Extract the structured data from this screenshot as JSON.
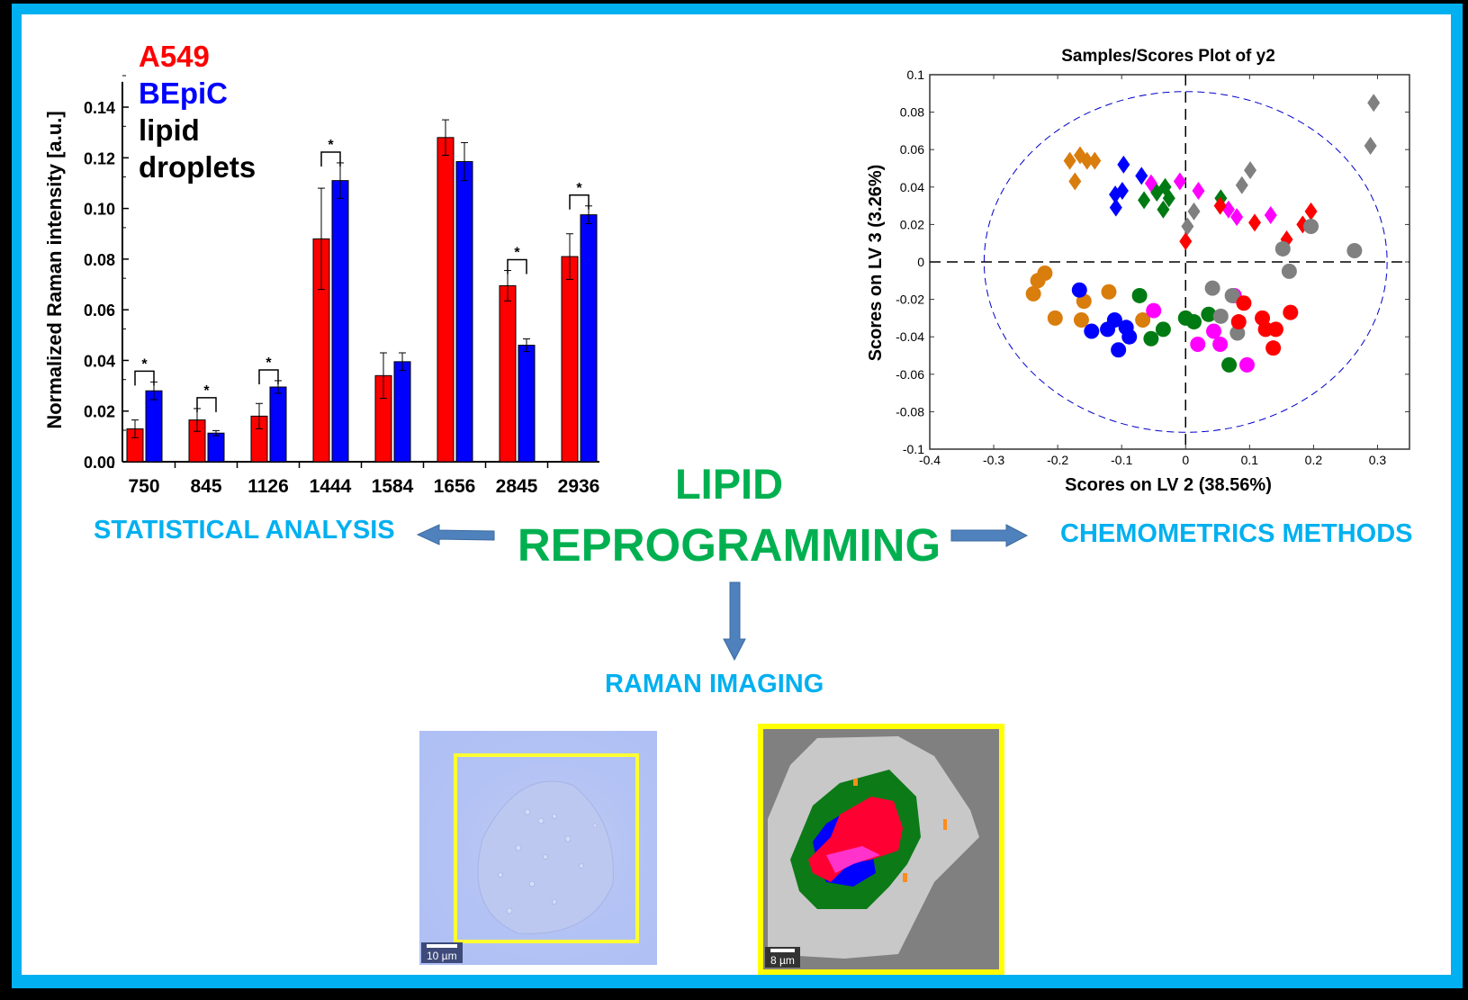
{
  "center": {
    "title_line1": "LIPID",
    "title_line2": "REPROGRAMMING"
  },
  "labels": {
    "statistical": "STATISTICAL ANALYSIS",
    "chemometrics": "CHEMOMETRICS METHODS",
    "raman_imaging": "RAMAN IMAGING"
  },
  "legend": {
    "a549": "A549",
    "bepic": "BEpiC",
    "line3": "lipid",
    "line4": "droplets"
  },
  "colors": {
    "frame": "#00b0f0",
    "headline": "#00b050",
    "method_text": "#00b0f0",
    "arrow": "#4f81bd",
    "a549": "#ff0000",
    "bepic": "#0000ff"
  },
  "images": {
    "brightfield_scale": "10 µm",
    "raman_map_scale": "8 µm"
  },
  "chart_data": [
    {
      "type": "bar",
      "ylabel": "Normalized Raman intensity [a.u.]",
      "xlabel": "",
      "ylim": [
        0,
        0.15
      ],
      "yticks": [
        "0.00",
        "0.02",
        "0.04",
        "0.06",
        "0.08",
        "0.10",
        "0.12",
        "0.14"
      ],
      "categories": [
        "750",
        "845",
        "1126",
        "1444",
        "1584",
        "1656",
        "2845",
        "2936"
      ],
      "series": [
        {
          "name": "A549",
          "color": "#ff0000",
          "values": [
            0.013,
            0.0165,
            0.018,
            0.088,
            0.034,
            0.128,
            0.0695,
            0.081
          ],
          "errors": [
            0.0035,
            0.0045,
            0.005,
            0.02,
            0.009,
            0.007,
            0.006,
            0.009
          ]
        },
        {
          "name": "BEpiC",
          "color": "#0000ff",
          "values": [
            0.028,
            0.0113,
            0.0295,
            0.111,
            0.0395,
            0.1185,
            0.046,
            0.0975
          ],
          "errors": [
            0.0035,
            0.001,
            0.0025,
            0.007,
            0.0035,
            0.0075,
            0.0025,
            0.0035
          ]
        }
      ],
      "significance": [
        "750",
        "845",
        "1126",
        "1444",
        "2845",
        "2936"
      ],
      "significance_mark": "*"
    },
    {
      "type": "scatter",
      "title": "Samples/Scores Plot of y2",
      "xlabel": "Scores on LV 2 (38.56%)",
      "ylabel": "Scores on LV 3 (3.26%)",
      "xlim": [
        -0.4,
        0.35
      ],
      "ylim": [
        -0.1,
        0.1
      ],
      "xticks": [
        "-0.4",
        "-0.3",
        "-0.2",
        "-0.1",
        "0",
        "0.1",
        "0.2",
        "0.3"
      ],
      "yticks": [
        "-0.1",
        "-0.08",
        "-0.06",
        "-0.04",
        "-0.02",
        "0",
        "0.02",
        "0.04",
        "0.06",
        "0.08",
        "0.1"
      ],
      "confidence_ellipse": {
        "cx": 0,
        "cy": 0,
        "rx": 0.315,
        "ry": 0.091,
        "color": "#0000cc"
      },
      "series": [
        {
          "color": "#d97d0d",
          "marker": "diamond",
          "points": [
            [
              -0.181,
              0.054
            ],
            [
              -0.165,
              0.057
            ],
            [
              -0.154,
              0.054
            ],
            [
              -0.142,
              0.054
            ],
            [
              -0.173,
              0.043
            ]
          ]
        },
        {
          "color": "#0000ff",
          "marker": "diamond",
          "points": [
            [
              -0.097,
              0.052
            ],
            [
              -0.069,
              0.046
            ],
            [
              -0.11,
              0.036
            ],
            [
              -0.099,
              0.038
            ],
            [
              -0.109,
              0.029
            ]
          ]
        },
        {
          "color": "#ff00ff",
          "marker": "diamond",
          "points": [
            [
              -0.054,
              0.042
            ],
            [
              -0.009,
              0.043
            ],
            [
              0.02,
              0.038
            ],
            [
              0.067,
              0.028
            ],
            [
              0.08,
              0.024
            ],
            [
              0.133,
              0.025
            ]
          ]
        },
        {
          "color": "#007a12",
          "marker": "diamond",
          "points": [
            [
              -0.065,
              0.033
            ],
            [
              -0.045,
              0.037
            ],
            [
              -0.032,
              0.04
            ],
            [
              -0.026,
              0.034
            ],
            [
              -0.035,
              0.028
            ],
            [
              0.055,
              0.034
            ]
          ]
        },
        {
          "color": "#808080",
          "marker": "diamond",
          "points": [
            [
              0.294,
              0.085
            ],
            [
              0.289,
              0.062
            ],
            [
              0.101,
              0.049
            ],
            [
              0.088,
              0.041
            ],
            [
              0.013,
              0.027
            ],
            [
              0.003,
              0.019
            ]
          ]
        },
        {
          "color": "#ff0000",
          "marker": "diamond",
          "points": [
            [
              0.0,
              0.011
            ],
            [
              0.054,
              0.03
            ],
            [
              0.108,
              0.021
            ],
            [
              0.158,
              0.012
            ],
            [
              0.183,
              0.02
            ],
            [
              0.196,
              0.027
            ]
          ]
        },
        {
          "color": "#d97d0d",
          "marker": "circle",
          "points": [
            [
              -0.22,
              -0.006
            ],
            [
              -0.231,
              -0.01
            ],
            [
              -0.238,
              -0.017
            ],
            [
              -0.204,
              -0.03
            ],
            [
              -0.159,
              -0.021
            ],
            [
              -0.163,
              -0.031
            ],
            [
              -0.12,
              -0.016
            ],
            [
              -0.067,
              -0.031
            ]
          ]
        },
        {
          "color": "#0000ff",
          "marker": "circle",
          "points": [
            [
              -0.166,
              -0.015
            ],
            [
              -0.111,
              -0.031
            ],
            [
              -0.147,
              -0.037
            ],
            [
              -0.122,
              -0.036
            ],
            [
              -0.093,
              -0.035
            ],
            [
              -0.088,
              -0.04
            ],
            [
              -0.105,
              -0.047
            ]
          ]
        },
        {
          "color": "#007a12",
          "marker": "circle",
          "points": [
            [
              -0.072,
              -0.018
            ],
            [
              -0.035,
              -0.036
            ],
            [
              -0.054,
              -0.041
            ],
            [
              0.0,
              -0.03
            ],
            [
              0.013,
              -0.032
            ],
            [
              0.036,
              -0.028
            ],
            [
              0.068,
              -0.055
            ]
          ]
        },
        {
          "color": "#ff00ff",
          "marker": "circle",
          "points": [
            [
              -0.05,
              -0.026
            ],
            [
              0.019,
              -0.044
            ],
            [
              0.044,
              -0.037
            ],
            [
              0.054,
              -0.044
            ],
            [
              0.096,
              -0.055
            ],
            [
              0.076,
              -0.018
            ]
          ]
        },
        {
          "color": "#808080",
          "marker": "circle",
          "points": [
            [
              0.042,
              -0.014
            ],
            [
              0.073,
              -0.018
            ],
            [
              0.055,
              -0.029
            ],
            [
              0.081,
              -0.038
            ],
            [
              0.152,
              0.007
            ],
            [
              0.196,
              0.019
            ],
            [
              0.264,
              0.006
            ],
            [
              0.162,
              -0.005
            ]
          ]
        },
        {
          "color": "#ff0000",
          "marker": "circle",
          "points": [
            [
              0.091,
              -0.022
            ],
            [
              0.083,
              -0.032
            ],
            [
              0.12,
              -0.03
            ],
            [
              0.125,
              -0.036
            ],
            [
              0.141,
              -0.036
            ],
            [
              0.137,
              -0.046
            ],
            [
              0.164,
              -0.027
            ]
          ]
        }
      ]
    }
  ]
}
